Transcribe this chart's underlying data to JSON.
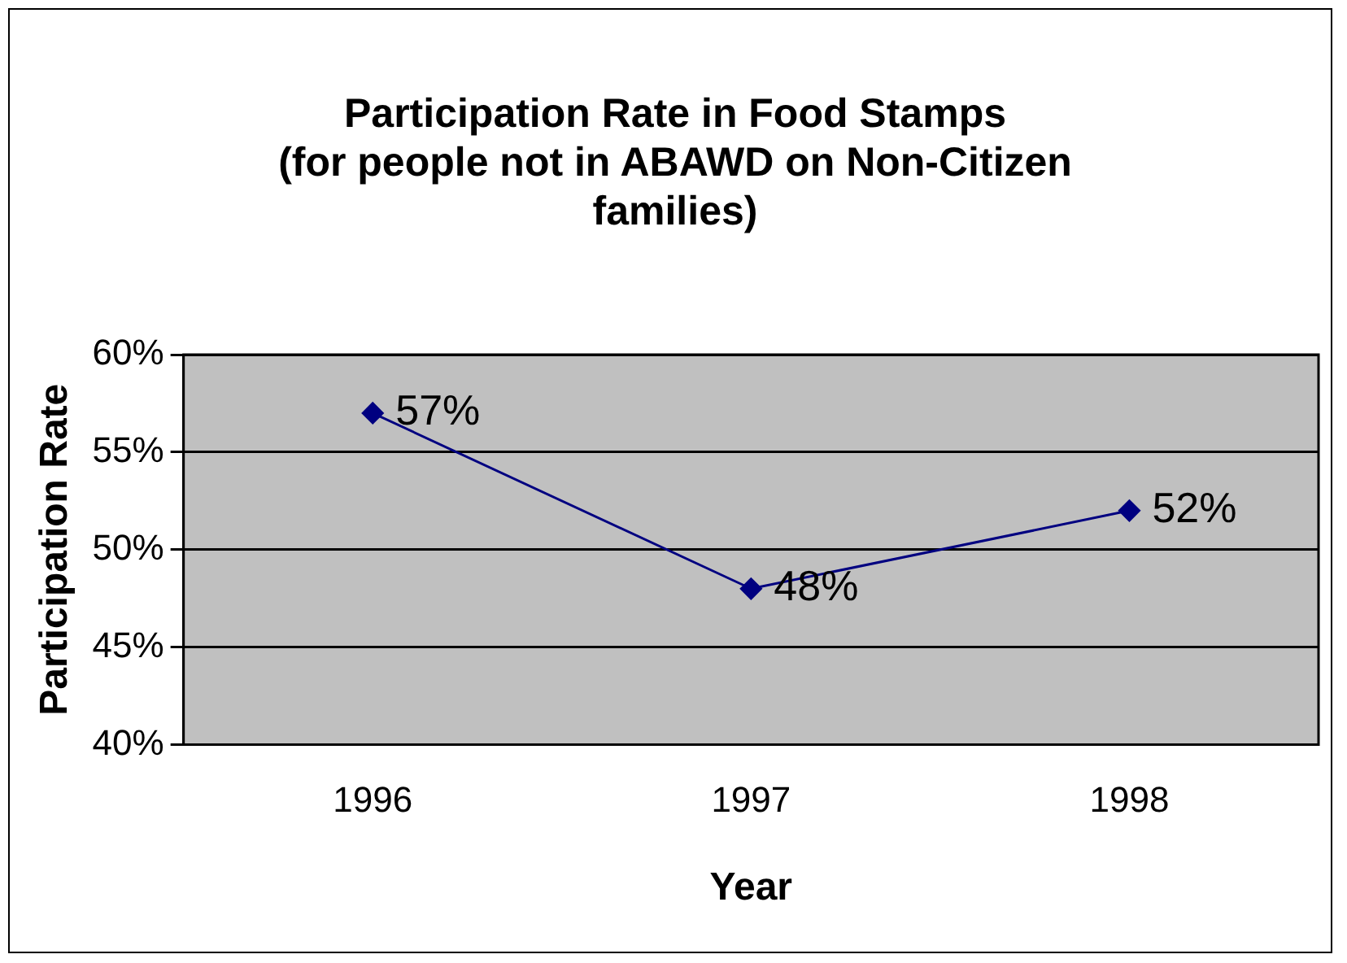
{
  "chart_data": {
    "type": "line",
    "title": [
      "Participation Rate in Food Stamps",
      "(for people not in ABAWD on Non-Citizen",
      "families)"
    ],
    "xlabel": "Year",
    "ylabel": "Participation Rate",
    "categories": [
      "1996",
      "1997",
      "1998"
    ],
    "series": [
      {
        "color": "#000080",
        "values": [
          57,
          48,
          52
        ],
        "value_labels": [
          "57%",
          "48%",
          "52%"
        ]
      }
    ],
    "ylim": [
      40,
      60
    ],
    "yticks": [
      {
        "value": 40,
        "label": "40%"
      },
      {
        "value": 45,
        "label": "45%"
      },
      {
        "value": 50,
        "label": "50%"
      },
      {
        "value": 55,
        "label": "55%"
      },
      {
        "value": 60,
        "label": "60%"
      }
    ],
    "grid": "y",
    "legend": false,
    "marker": "diamond",
    "line_style": "solid"
  }
}
